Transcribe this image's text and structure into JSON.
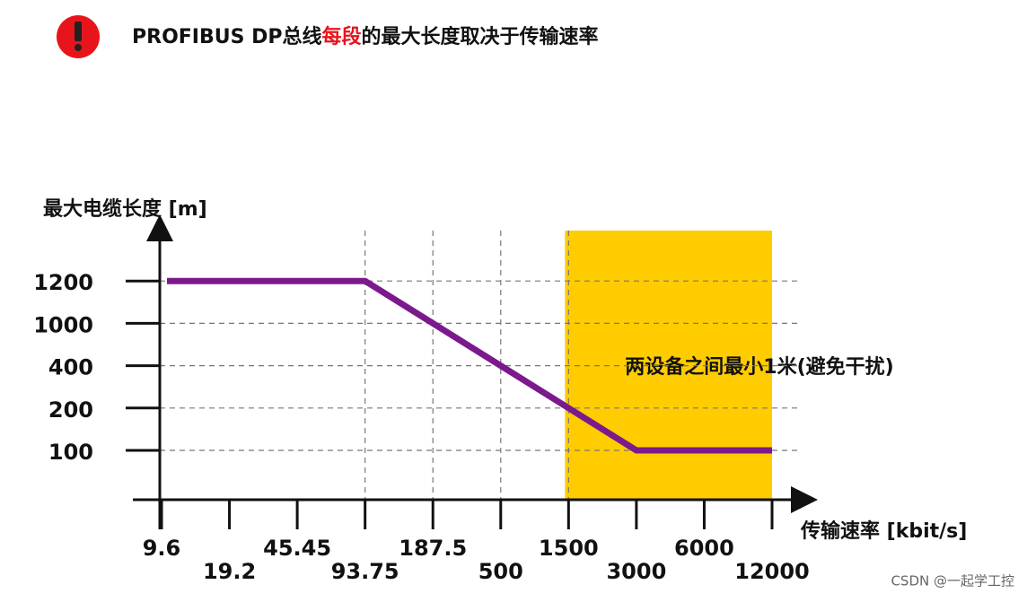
{
  "header": {
    "title_parts": [
      "PROFIBUS DP总线",
      "每段",
      "的最大长度取决于传输速率"
    ]
  },
  "chart_data": {
    "type": "line",
    "y_label": "最大电缆长度 [m]",
    "x_label": "传输速率 [kbit/s]",
    "categories": [
      "9.6",
      "19.2",
      "45.45",
      "93.75",
      "187.5",
      "500",
      "1500",
      "3000",
      "6000",
      "12000"
    ],
    "yticks": [
      100,
      200,
      400,
      1000,
      1200
    ],
    "series": [
      {
        "name": "最大电缆长度",
        "color": "#7b1a8c",
        "values": [
          1200,
          1200,
          1200,
          1200,
          1000,
          400,
          200,
          100,
          100,
          100
        ]
      }
    ],
    "annotation": "两设备之间最小1米(避免干扰)",
    "highlight_color": "#ffcc00"
  },
  "watermark": "CSDN @一起学工控"
}
